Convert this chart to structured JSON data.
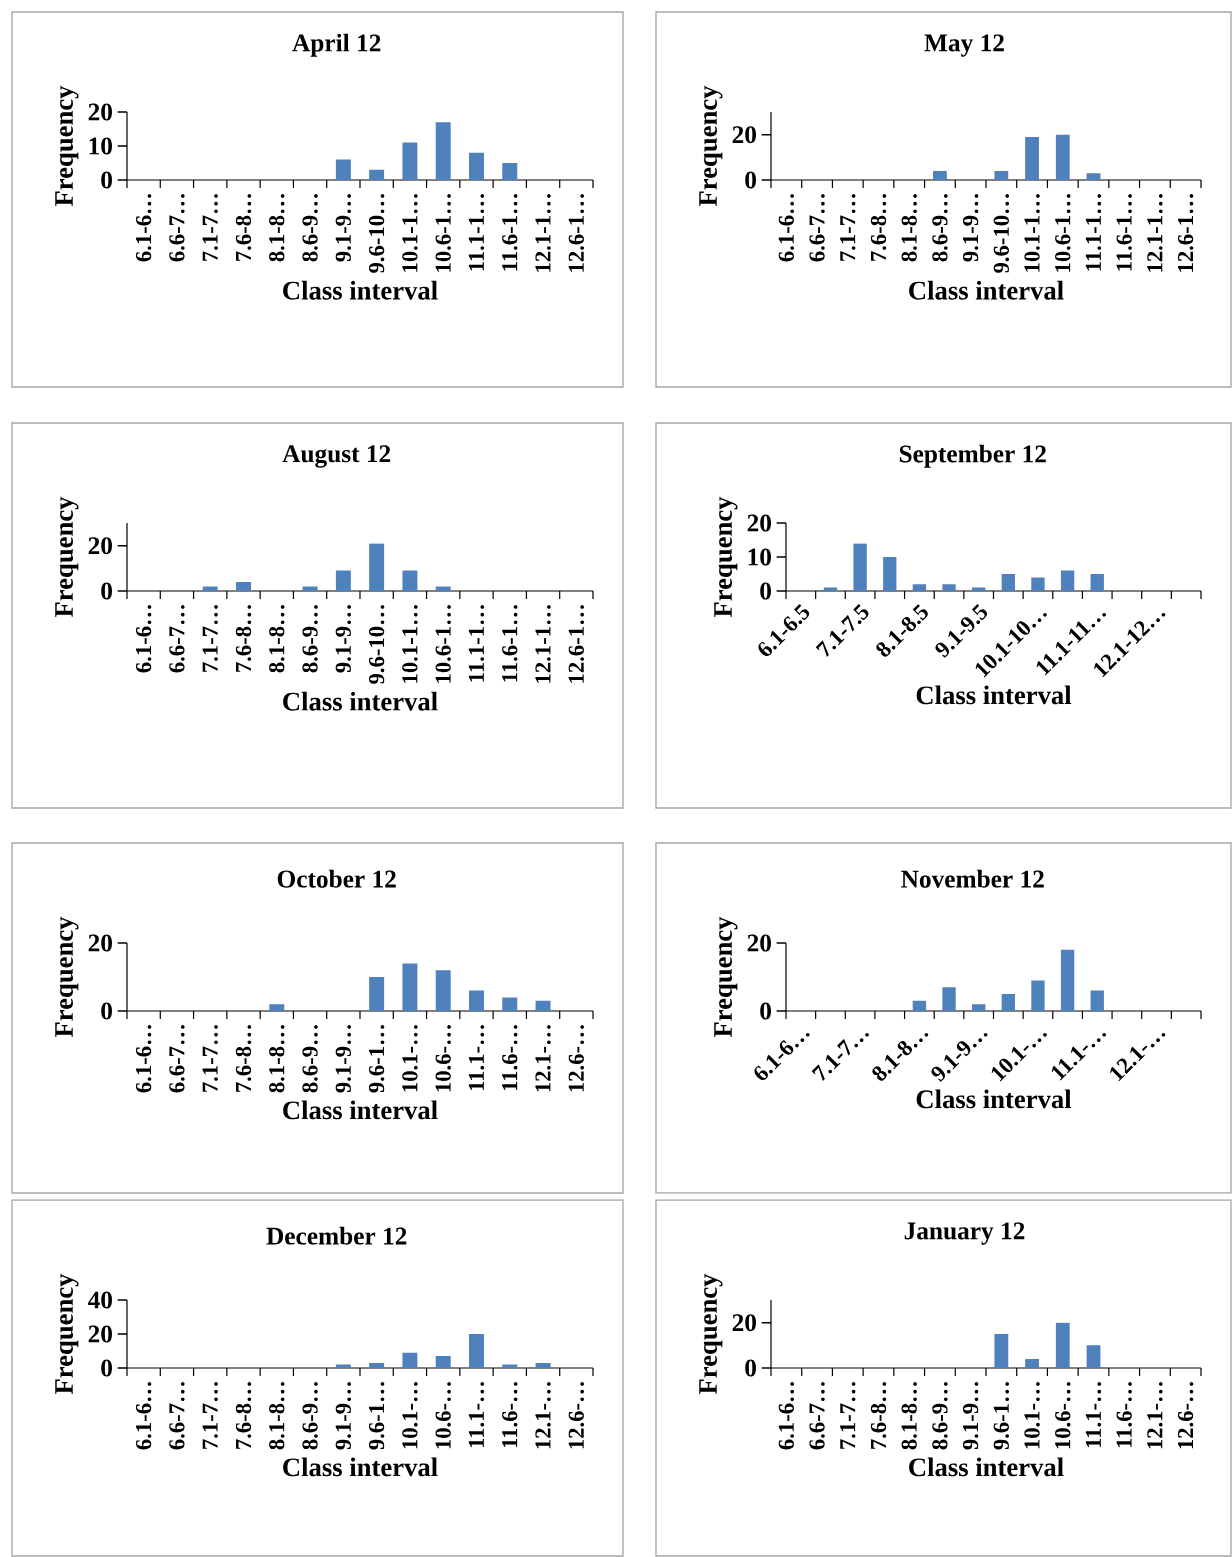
{
  "chart_data": [
    {
      "type": "bar",
      "title": "April  12",
      "xlabel": "Class interval",
      "ylabel": "Frequency",
      "color": "#4f81bd",
      "categories": [
        "6.1-6…",
        "6.6-7…",
        "7.1-7…",
        "7.6-8…",
        "8.1-8…",
        "8.6-9…",
        "9.1-9…",
        "9.6-10…",
        "10.1-1…",
        "10.6-1…",
        "11.1-1…",
        "11.6-1…",
        "12.1-1…",
        "12.6-1…"
      ],
      "values": [
        0,
        0,
        0,
        0,
        0,
        0,
        6,
        3,
        11,
        17,
        8,
        5,
        0,
        0
      ],
      "ylim": [
        0,
        20
      ],
      "yticks": [
        0,
        10,
        20
      ]
    },
    {
      "type": "bar",
      "title": "May 12",
      "xlabel": "Class interval",
      "ylabel": "Frequency",
      "color": "#4f81bd",
      "categories": [
        "6.1-6…",
        "6.6-7…",
        "7.1-7…",
        "7.6-8…",
        "8.1-8…",
        "8.6-9…",
        "9.1-9…",
        "9.6-10…",
        "10.1-1…",
        "10.6-1…",
        "11.1-1…",
        "11.6-1…",
        "12.1-1…",
        "12.6-1…"
      ],
      "values": [
        0,
        0,
        0,
        0,
        0,
        4,
        0,
        4,
        19,
        20,
        3,
        0,
        0,
        0
      ],
      "ylim": [
        0,
        30
      ],
      "yticks": [
        0,
        20
      ]
    },
    {
      "type": "bar",
      "title": "August  12",
      "xlabel": "Class interval",
      "ylabel": "Frequency",
      "color": "#4f81bd",
      "categories": [
        "6.1-6…",
        "6.6-7…",
        "7.1-7…",
        "7.6-8…",
        "8.1-8…",
        "8.6-9…",
        "9.1-9…",
        "9.6-10…",
        "10.1-1…",
        "10.6-1…",
        "11.1-1…",
        "11.6-1…",
        "12.1-1…",
        "12.6-1…"
      ],
      "values": [
        0,
        0,
        2,
        4,
        0,
        2,
        9,
        21,
        9,
        2,
        0,
        0,
        0,
        0
      ],
      "ylim": [
        0,
        30
      ],
      "yticks": [
        0,
        20
      ]
    },
    {
      "type": "bar",
      "title": "September  12",
      "xlabel": "Class interval",
      "ylabel": "Frequency",
      "color": "#4f81bd",
      "categories": [
        "6.1-6.5",
        null,
        "7.1-7.5",
        null,
        "8.1-8.5",
        null,
        "9.1-9.5",
        null,
        "10.1-10…",
        null,
        "11.1-11…",
        null,
        "12.1-12…",
        null
      ],
      "values": [
        0,
        1,
        14,
        10,
        2,
        2,
        1,
        5,
        4,
        6,
        5,
        0,
        0,
        0
      ],
      "ylim": [
        0,
        20
      ],
      "yticks": [
        0,
        10,
        20
      ]
    },
    {
      "type": "bar",
      "title": "October  12",
      "xlabel": "Class interval",
      "ylabel": "Frequency",
      "color": "#4f81bd",
      "categories": [
        "6.1-6…",
        "6.6-7…",
        "7.1-7…",
        "7.6-8…",
        "8.1-8…",
        "8.6-9…",
        "9.1-9…",
        "9.6-1…",
        "10.1-…",
        "10.6-…",
        "11.1-…",
        "11.6-…",
        "12.1-…",
        "12.6-…"
      ],
      "values": [
        0,
        0,
        0,
        0,
        2,
        0,
        0,
        10,
        14,
        12,
        6,
        4,
        3,
        0
      ],
      "ylim": [
        0,
        20
      ],
      "yticks": [
        0,
        20
      ]
    },
    {
      "type": "bar",
      "title": "November  12",
      "xlabel": "Class interval",
      "ylabel": "Frequency",
      "color": "#4f81bd",
      "categories": [
        "6.1-6…",
        null,
        "7.1-7…",
        null,
        "8.1-8…",
        null,
        "9.1-9…",
        null,
        "10.1-…",
        null,
        "11.1-…",
        null,
        "12.1-…",
        null
      ],
      "values": [
        0,
        0,
        0,
        0,
        3,
        7,
        2,
        5,
        9,
        18,
        6,
        0,
        0,
        0
      ],
      "ylim": [
        0,
        20
      ],
      "yticks": [
        0,
        20
      ]
    },
    {
      "type": "bar",
      "title": "December 12",
      "xlabel": "Class interval",
      "ylabel": "Frequency",
      "color": "#4f81bd",
      "categories": [
        "6.1-6…",
        "6.6-7…",
        "7.1-7…",
        "7.6-8…",
        "8.1-8…",
        "8.6-9…",
        "9.1-9…",
        "9.6-1…",
        "10.1-…",
        "10.6-…",
        "11.1-…",
        "11.6-…",
        "12.1-…",
        "12.6-…"
      ],
      "values": [
        0,
        0,
        0,
        0,
        0,
        0,
        2,
        3,
        9,
        7,
        20,
        2,
        3,
        0
      ],
      "ylim": [
        0,
        40
      ],
      "yticks": [
        0,
        20,
        40
      ]
    },
    {
      "type": "bar",
      "title": "January  12",
      "xlabel": "Class interval",
      "ylabel": "Frequency",
      "color": "#4f81bd",
      "categories": [
        "6.1-6…",
        "6.6-7…",
        "7.1-7…",
        "7.6-8…",
        "8.1-8…",
        "8.6-9…",
        "9.1-9…",
        "9.6-1…",
        "10.1-…",
        "10.6-…",
        "11.1-…",
        "11.6-…",
        "12.1-…",
        "12.6-…"
      ],
      "values": [
        0,
        0,
        0,
        0,
        0,
        0,
        0,
        15,
        4,
        20,
        10,
        0,
        0,
        0
      ],
      "ylim": [
        0,
        30
      ],
      "yticks": [
        0,
        20
      ]
    }
  ]
}
